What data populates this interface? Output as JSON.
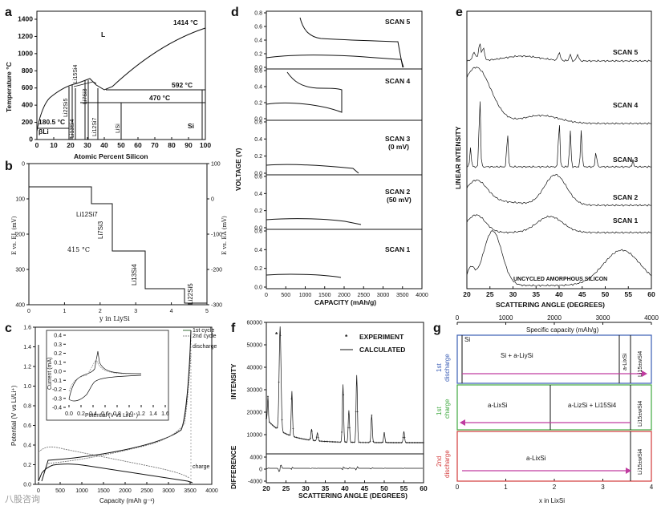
{
  "panels": {
    "a": {
      "label": "a",
      "ylabel": "Temperature °C",
      "xlabel": "Atomic Percent Silicon",
      "yticks": [
        "0",
        "200",
        "400",
        "600",
        "800",
        "1000",
        "1200",
        "1400"
      ],
      "xticks": [
        "0",
        "10",
        "20",
        "30",
        "40",
        "50",
        "60",
        "70",
        "80",
        "90",
        "100"
      ],
      "region_L": "L",
      "t_si_melt": "1414 °C",
      "t_592": "592 °C",
      "t_470": "470 °C",
      "t_180": "180.5 °C",
      "beta_li": "βLi",
      "si": "Si",
      "phases": [
        "Li22Si5",
        "Li13Si4",
        "Li15Si4",
        "Li7Si3",
        "Li12Si7",
        "LiSi"
      ]
    },
    "b": {
      "label": "b",
      "ylabel_left": "E vs. EL (mV)",
      "ylabel_right": "E vs. EA (mV)",
      "xlabel": "y in LiySi",
      "temp": "415 °C",
      "yticks_left": [
        "0",
        "100",
        "200",
        "300",
        "400"
      ],
      "yticks_right": [
        "100",
        "0",
        "-100",
        "-200",
        "-300"
      ],
      "xticks": [
        "0",
        "1",
        "2",
        "3",
        "4",
        "5"
      ],
      "phases": [
        "Li12Si7",
        "Li7Si3",
        "Li13Si4",
        "Li22Si5"
      ]
    },
    "c": {
      "label": "c",
      "ylabel": "Potential (V vs Li/Li⁺)",
      "xlabel": "Capacity (mAh g⁻¹)",
      "yticks": [
        "0.0",
        "0.2",
        "0.4",
        "0.6",
        "0.8",
        "1.0",
        "1.2",
        "1.4",
        "1.6"
      ],
      "xticks": [
        "0",
        "500",
        "1000",
        "1500",
        "2000",
        "2500",
        "3000",
        "3500",
        "4000"
      ],
      "legend": [
        "1st cycle",
        "2nd cycle"
      ],
      "discharge": "discharge",
      "charge": "charge",
      "inset_ylabel": "Current (mA)",
      "inset_xlabel": "Potential (V vs Li/Li⁺)",
      "inset_yticks": [
        "0.4",
        "0.3",
        "0.2",
        "0.1",
        "0.0",
        "-0.1",
        "-0.2",
        "-0.3",
        "-0.4"
      ],
      "inset_xticks": [
        "0.0",
        "0.2",
        "0.4",
        "0.6",
        "0.8",
        "1.0",
        "1.2",
        "1.4",
        "1.6"
      ]
    },
    "d": {
      "label": "d",
      "ylabel": "VOLTAGE (V)",
      "xlabel": "CAPACITY (mAh/g)",
      "xticks": [
        "0",
        "500",
        "1000",
        "1500",
        "2000",
        "2500",
        "3000",
        "3500",
        "4000"
      ],
      "yticks_top": [
        "0.8",
        "0.6",
        "0.4",
        "0.2",
        "0.0"
      ],
      "yticks": [
        "0.6",
        "0.4",
        "0.2",
        "0.0"
      ],
      "scans": [
        "SCAN 5",
        "SCAN 4",
        "SCAN 3",
        "SCAN 2",
        "SCAN 1"
      ],
      "scan3_sub": "(0 mV)",
      "scan2_sub": "(50 mV)"
    },
    "e": {
      "label": "e",
      "ylabel": "LINEAR INTENSITY",
      "xlabel": "SCATTERING ANGLE (DEGREES)",
      "xticks": [
        "20",
        "25",
        "30",
        "35",
        "40",
        "45",
        "50",
        "55",
        "60"
      ],
      "scans": [
        "SCAN 5",
        "SCAN 4",
        "SCAN 3",
        "SCAN 2",
        "SCAN 1"
      ],
      "uncycled": "UNCYCLED AMORPHOUS SILICON"
    },
    "f": {
      "label": "f",
      "ylabel": "INTENSITY",
      "ylabel2": "DIFFERENCE",
      "xlabel": "SCATTERING ANGLE (DEGREES)",
      "yticks": [
        "60000",
        "50000",
        "40000",
        "30000",
        "20000",
        "10000"
      ],
      "yticks2": [
        "4000",
        "0",
        "-4000"
      ],
      "xticks": [
        "20",
        "25",
        "30",
        "35",
        "40",
        "45",
        "50",
        "55",
        "60"
      ],
      "legend_exp": "EXPERIMENT",
      "legend_calc": "CALCULATED",
      "star": "*"
    },
    "g": {
      "label": "g",
      "top_title": "Specific capacity (mAh/g)",
      "top_ticks": [
        "0",
        "1000",
        "2000",
        "3000",
        "4000"
      ],
      "xlabel": "x in LixSi",
      "xticks": [
        "0",
        "1",
        "2",
        "3",
        "4"
      ],
      "row1_label": [
        "1st",
        "discharge"
      ],
      "row2_label": [
        "1st",
        "charge"
      ],
      "row3_label": [
        "2nd",
        "discharge"
      ],
      "si": "Si",
      "r1_mid": "Si + a-LiySi",
      "r1_a": "a-LixSi",
      "r_li15": "Li15±wSi4",
      "r2_left": "a-LixSi",
      "r2_mid": "a-LizSi + Li15Si4",
      "r3_left": "a-LixSi",
      "colors": {
        "row1": "#3a5db5",
        "row2": "#3fa83f",
        "row3": "#d33a3a",
        "arrow": "#c03ca0"
      }
    }
  },
  "watermark": "八股咨询"
}
